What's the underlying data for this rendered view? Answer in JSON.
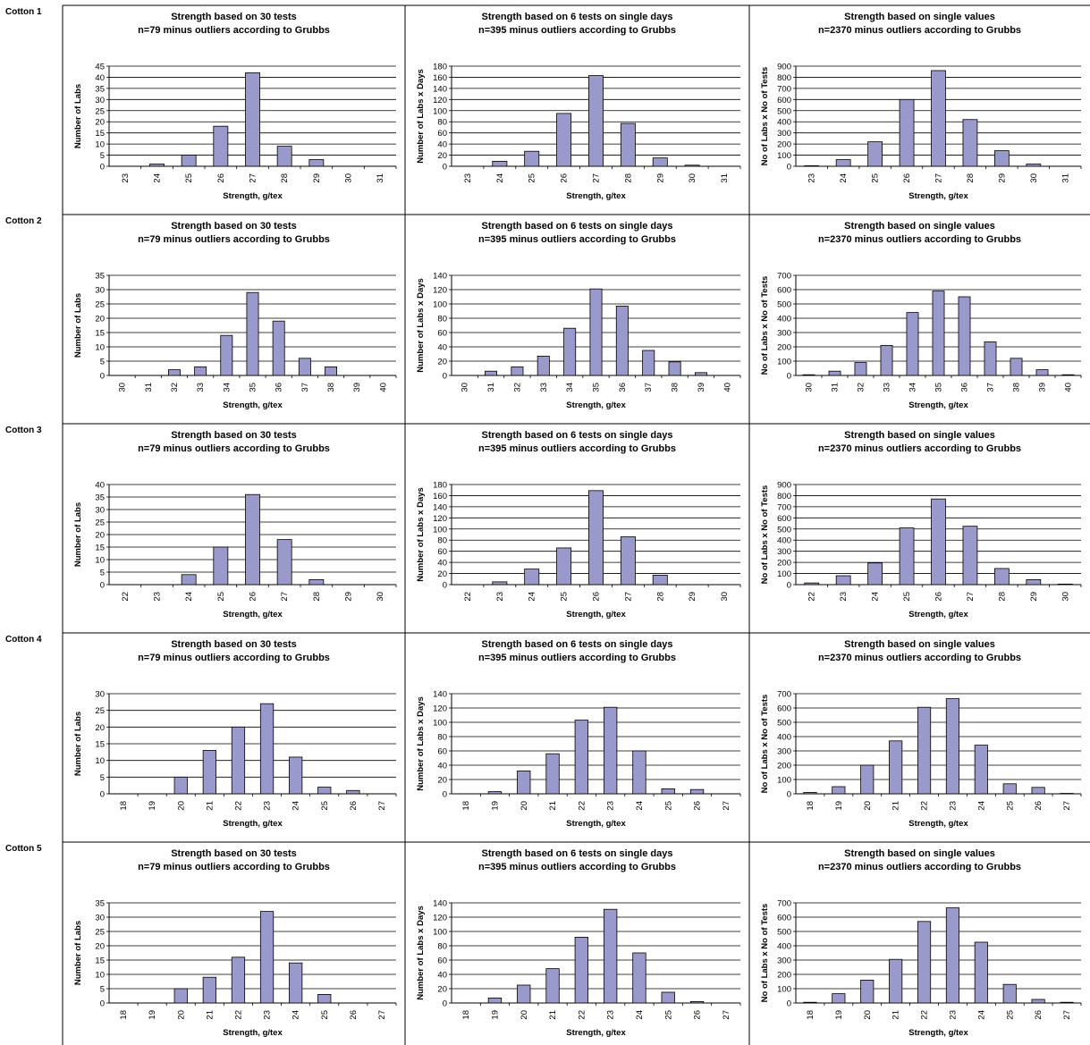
{
  "colors": {
    "bar": "#9999CC",
    "bar_stroke": "#000000",
    "grid": "#000000",
    "frame": "#000000",
    "text": "#000000"
  },
  "rows": [
    {
      "label": "Cotton 1"
    },
    {
      "label": "Cotton 2"
    },
    {
      "label": "Cotton 3"
    },
    {
      "label": "Cotton 4"
    },
    {
      "label": "Cotton 5"
    }
  ],
  "chart_data": [
    {
      "id": "c1-30t",
      "row": 0,
      "col": 0,
      "type": "bar",
      "title": "Strength based on 30 tests",
      "subtitle": "n=79 minus outliers according to Grubbs",
      "xlabel": "Strength, g/tex",
      "ylabel": "Number of Labs",
      "categories": [
        "23",
        "24",
        "25",
        "26",
        "27",
        "28",
        "29",
        "30",
        "31"
      ],
      "values": [
        0,
        1,
        5,
        18,
        42,
        9,
        3,
        0,
        0
      ],
      "ylim": [
        0,
        45
      ],
      "ystep": 5
    },
    {
      "id": "c1-6t",
      "row": 0,
      "col": 1,
      "type": "bar",
      "title": "Strength based on 6 tests on single days",
      "subtitle": "n=395 minus outliers according to Grubbs",
      "xlabel": "Strength, g/tex",
      "ylabel": "Number of Labs x Days",
      "categories": [
        "23",
        "24",
        "25",
        "26",
        "27",
        "28",
        "29",
        "30",
        "31"
      ],
      "values": [
        0,
        9,
        27,
        95,
        163,
        77,
        15,
        2,
        0
      ],
      "ylim": [
        0,
        180
      ],
      "ystep": 20
    },
    {
      "id": "c1-sv",
      "row": 0,
      "col": 2,
      "type": "bar",
      "title": "Strength based on single values",
      "subtitle": "n=2370 minus outliers according to Grubbs",
      "xlabel": "Strength, g/tex",
      "ylabel": "No of Labs x No of Tests",
      "categories": [
        "23",
        "24",
        "25",
        "26",
        "27",
        "28",
        "29",
        "30",
        "31"
      ],
      "values": [
        5,
        60,
        220,
        600,
        860,
        420,
        140,
        20,
        0
      ],
      "ylim": [
        0,
        900
      ],
      "ystep": 100
    },
    {
      "id": "c2-30t",
      "row": 1,
      "col": 0,
      "type": "bar",
      "title": "Strength based on 30 tests",
      "subtitle": "n=79 minus outliers according to Grubbs",
      "xlabel": "Strength, g/tex",
      "ylabel": "Number of Labs",
      "categories": [
        "30",
        "31",
        "32",
        "33",
        "34",
        "35",
        "36",
        "37",
        "38",
        "39",
        "40"
      ],
      "values": [
        0,
        0,
        2,
        3,
        14,
        29,
        19,
        6,
        3,
        0,
        0
      ],
      "ylim": [
        0,
        35
      ],
      "ystep": 5
    },
    {
      "id": "c2-6t",
      "row": 1,
      "col": 1,
      "type": "bar",
      "title": "Strength based on 6 tests on single days",
      "subtitle": "n=395 minus outliers according to Grubbs",
      "xlabel": "Strength, g/tex",
      "ylabel": "Number of Labs x Days",
      "categories": [
        "30",
        "31",
        "32",
        "33",
        "34",
        "35",
        "36",
        "37",
        "38",
        "39",
        "40"
      ],
      "values": [
        0,
        6,
        12,
        27,
        66,
        121,
        97,
        35,
        19,
        4,
        0
      ],
      "ylim": [
        0,
        140
      ],
      "ystep": 20
    },
    {
      "id": "c2-sv",
      "row": 1,
      "col": 2,
      "type": "bar",
      "title": "Strength based on single values",
      "subtitle": "n=2370 minus outliers according to Grubbs",
      "xlabel": "Strength, g/tex",
      "ylabel": "No of Labs x No of Tests",
      "categories": [
        "30",
        "31",
        "32",
        "33",
        "34",
        "35",
        "36",
        "37",
        "38",
        "39",
        "40"
      ],
      "values": [
        5,
        30,
        90,
        210,
        440,
        590,
        550,
        235,
        120,
        40,
        5
      ],
      "ylim": [
        0,
        700
      ],
      "ystep": 100
    },
    {
      "id": "c3-30t",
      "row": 2,
      "col": 0,
      "type": "bar",
      "title": "Strength based on 30 tests",
      "subtitle": "n=79 minus outliers according to Grubbs",
      "xlabel": "Strength, g/tex",
      "ylabel": "Number of Labs",
      "categories": [
        "22",
        "23",
        "24",
        "25",
        "26",
        "27",
        "28",
        "29",
        "30"
      ],
      "values": [
        0,
        0,
        4,
        15,
        36,
        18,
        2,
        0,
        0
      ],
      "ylim": [
        0,
        40
      ],
      "ystep": 5
    },
    {
      "id": "c3-6t",
      "row": 2,
      "col": 1,
      "type": "bar",
      "title": "Strength based on 6 tests on single days",
      "subtitle": "n=395 minus outliers according to Grubbs",
      "xlabel": "Strength, g/tex",
      "ylabel": "Number of Labs x Days",
      "categories": [
        "22",
        "23",
        "24",
        "25",
        "26",
        "27",
        "28",
        "29",
        "30"
      ],
      "values": [
        0,
        5,
        28,
        66,
        169,
        86,
        17,
        0,
        0
      ],
      "ylim": [
        0,
        180
      ],
      "ystep": 20
    },
    {
      "id": "c3-sv",
      "row": 2,
      "col": 2,
      "type": "bar",
      "title": "Strength based on single values",
      "subtitle": "n=2370 minus outliers according to Grubbs",
      "xlabel": "Strength, g/tex",
      "ylabel": "No of Labs x No of Tests",
      "categories": [
        "22",
        "23",
        "24",
        "25",
        "26",
        "27",
        "28",
        "29",
        "30"
      ],
      "values": [
        15,
        80,
        195,
        510,
        770,
        525,
        145,
        45,
        5
      ],
      "ylim": [
        0,
        900
      ],
      "ystep": 100
    },
    {
      "id": "c4-30t",
      "row": 3,
      "col": 0,
      "type": "bar",
      "title": "Strength based on 30 tests",
      "subtitle": "n=79 minus outliers according to Grubbs",
      "xlabel": "Strength, g/tex",
      "ylabel": "Number of Labs",
      "categories": [
        "18",
        "19",
        "20",
        "21",
        "22",
        "23",
        "24",
        "25",
        "26",
        "27"
      ],
      "values": [
        0,
        0,
        5,
        13,
        20,
        27,
        11,
        2,
        1,
        0
      ],
      "ylim": [
        0,
        30
      ],
      "ystep": 5
    },
    {
      "id": "c4-6t",
      "row": 3,
      "col": 1,
      "type": "bar",
      "title": "Strength based on 6 tests on single days",
      "subtitle": "n=395 minus outliers according to Grubbs",
      "xlabel": "Strength, g/tex",
      "ylabel": "Number of Labs x Days",
      "categories": [
        "18",
        "19",
        "20",
        "21",
        "22",
        "23",
        "24",
        "25",
        "26",
        "27"
      ],
      "values": [
        0,
        3,
        32,
        56,
        103,
        121,
        60,
        7,
        6,
        0
      ],
      "ylim": [
        0,
        140
      ],
      "ystep": 20
    },
    {
      "id": "c4-sv",
      "row": 3,
      "col": 2,
      "type": "bar",
      "title": "Strength based on single values",
      "subtitle": "n=2370 minus outliers according to Grubbs",
      "xlabel": "Strength, g/tex",
      "ylabel": "No of Labs x No of Tests",
      "categories": [
        "18",
        "19",
        "20",
        "21",
        "22",
        "23",
        "24",
        "25",
        "26",
        "27"
      ],
      "values": [
        10,
        50,
        200,
        370,
        605,
        665,
        340,
        70,
        45,
        3
      ],
      "ylim": [
        0,
        700
      ],
      "ystep": 100
    },
    {
      "id": "c5-30t",
      "row": 4,
      "col": 0,
      "type": "bar",
      "title": "Strength based on 30 tests",
      "subtitle": "n=79 minus outliers according to Grubbs",
      "xlabel": "Strength, g/tex",
      "ylabel": "Number of Labs",
      "categories": [
        "18",
        "19",
        "20",
        "21",
        "22",
        "23",
        "24",
        "25",
        "26",
        "27"
      ],
      "values": [
        0,
        0,
        5,
        9,
        16,
        32,
        14,
        3,
        0,
        0
      ],
      "ylim": [
        0,
        35
      ],
      "ystep": 5
    },
    {
      "id": "c5-6t",
      "row": 4,
      "col": 1,
      "type": "bar",
      "title": "Strength based on 6 tests on single days",
      "subtitle": "n=395 minus outliers according to Grubbs",
      "xlabel": "Strength, g/tex",
      "ylabel": "Number of Labs x Days",
      "categories": [
        "18",
        "19",
        "20",
        "21",
        "22",
        "23",
        "24",
        "25",
        "26",
        "27"
      ],
      "values": [
        0,
        7,
        25,
        48,
        92,
        131,
        70,
        15,
        2,
        0
      ],
      "ylim": [
        0,
        140
      ],
      "ystep": 20
    },
    {
      "id": "c5-sv",
      "row": 4,
      "col": 2,
      "type": "bar",
      "title": "Strength based on single values",
      "subtitle": "n=2370 minus outliers according to Grubbs",
      "xlabel": "Strength, g/tex",
      "ylabel": "No of Labs x No of Tests",
      "categories": [
        "18",
        "19",
        "20",
        "21",
        "22",
        "23",
        "24",
        "25",
        "26",
        "27"
      ],
      "values": [
        5,
        65,
        160,
        305,
        570,
        665,
        425,
        130,
        25,
        5
      ],
      "ylim": [
        0,
        700
      ],
      "ystep": 100
    }
  ]
}
